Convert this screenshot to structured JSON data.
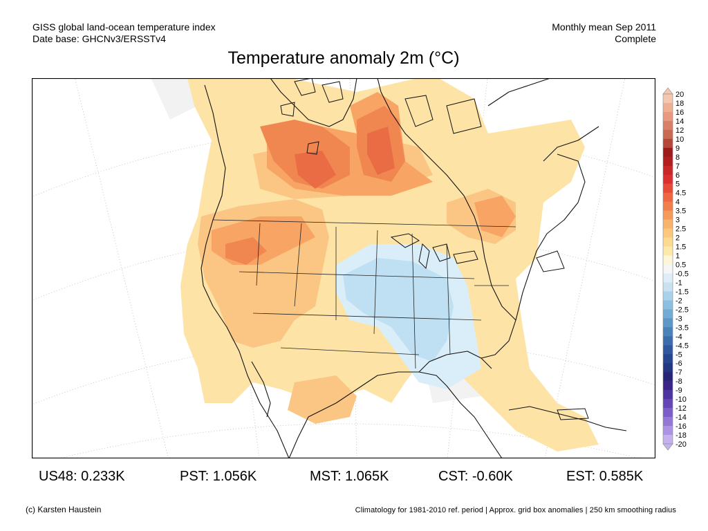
{
  "header": {
    "line1_left": "GISS global land-ocean temperature index",
    "line2_left": "Date base: GHCNv3/ERSSTv4",
    "line1_right": "Monthly mean Sep 2011",
    "line2_right": "Complete"
  },
  "title": "Temperature anomaly 2m (°C)",
  "colorbar": {
    "labels": [
      "20",
      "18",
      "16",
      "14",
      "12",
      "10",
      "9",
      "8",
      "7",
      "6",
      "5",
      "4.5",
      "4",
      "3.5",
      "3",
      "2.5",
      "2",
      "1.5",
      "1",
      "0.5",
      "-0.5",
      "-1",
      "-1.5",
      "-2",
      "-2.5",
      "-3",
      "-3.5",
      "-4",
      "-4.5",
      "-5",
      "-6",
      "-7",
      "-8",
      "-9",
      "-10",
      "-12",
      "-14",
      "-16",
      "-18",
      "-20"
    ],
    "colors": [
      "#f4c7b0",
      "#eeb095",
      "#e79a7e",
      "#d88166",
      "#c96b52",
      "#b5473b",
      "#9c1c1c",
      "#b31f1f",
      "#c82828",
      "#dc3030",
      "#e84a3a",
      "#ee6644",
      "#f07f4e",
      "#f59a5a",
      "#f8b46c",
      "#fbc87e",
      "#fdda92",
      "#fde9aa",
      "#fff6d8",
      "#f6f6f6",
      "#deeef8",
      "#c8e2f2",
      "#a9d2ea",
      "#8cc0e0",
      "#72acd4",
      "#5c98c8",
      "#4a82ba",
      "#3c6cac",
      "#30589e",
      "#264690",
      "#223681",
      "#282478",
      "#3a2488",
      "#4d34a0",
      "#6446b6",
      "#7c5ec8",
      "#9478d6",
      "#ab94e2",
      "#c4b2ec"
    ]
  },
  "map_legend": {
    "colors": {
      "warm_light": "#fde3a6",
      "warm_mid": "#fbc683",
      "warm_strong": "#f7a465",
      "warm_hot": "#f08751",
      "hot_peak": "#ea6c45",
      "neutral": "#f4f4f4",
      "cool_light": "#d9eef9",
      "cool_mid": "#bfe0f3"
    }
  },
  "stats": [
    {
      "label": "US48: 0.233K"
    },
    {
      "label": "PST: 1.056K"
    },
    {
      "label": "MST: 1.065K"
    },
    {
      "label": "CST: -0.60K"
    },
    {
      "label": "EST: 0.585K"
    }
  ],
  "footer": {
    "left": "(c) Karsten Haustein",
    "right": "Climatology for 1981-2010 ref. period | Approx. grid box anomalies | 250 km smoothing radius"
  }
}
